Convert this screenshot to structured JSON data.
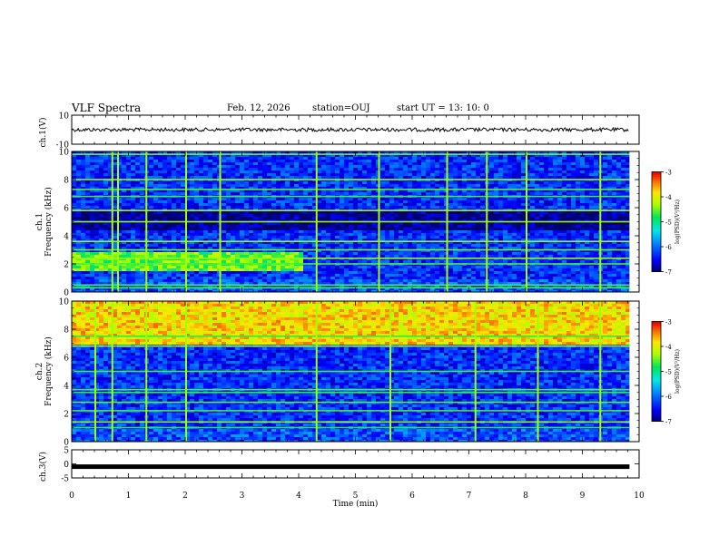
{
  "header": {
    "title": "VLF Spectra",
    "date": "Feb. 12, 2026",
    "station": "station=OUJ",
    "start_time": "start  UT  =   13: 10: 0"
  },
  "chart_data": [
    {
      "type": "line",
      "name": "ch.1 waveform",
      "ylabel": "ch.1(V)",
      "ylim": [
        -10,
        10
      ],
      "yticks": [
        "10",
        "-10"
      ],
      "level": 0,
      "description_values": {
        "mean": 0,
        "noise_amplitude": 1
      }
    },
    {
      "type": "heatmap",
      "name": "ch.1 spectrogram",
      "ylabel_top": "ch.1",
      "ylabel": "Frequency (kHz)",
      "ylim": [
        0,
        10
      ],
      "yticks": [
        "0",
        "2",
        "4",
        "6",
        "8",
        "10"
      ],
      "colorbar": {
        "label": "log(PSD)(V²/Hz)",
        "range": [
          -7,
          -3
        ],
        "ticks": [
          "-3",
          "-4",
          "-5",
          "-6",
          "-7"
        ]
      },
      "strong_bands_khz": [
        0.3,
        0.5,
        2.0,
        2.4,
        3.0,
        3.6,
        5.0,
        5.8,
        6.8,
        7.3,
        8.0,
        9.8
      ],
      "burst_times_min": [
        0.7,
        0.8,
        1.3,
        2.0,
        2.6,
        4.3,
        5.4,
        6.6,
        7.3,
        8.0,
        9.3
      ],
      "enhanced_region": {
        "time_min": [
          0,
          4
        ],
        "freq_khz": [
          1.5,
          3.0
        ],
        "level": -4.5
      }
    },
    {
      "type": "heatmap",
      "name": "ch.2 spectrogram",
      "ylabel_top": "ch.2",
      "ylabel": "Frequency (kHz)",
      "ylim": [
        0,
        10
      ],
      "yticks": [
        "0",
        "2",
        "4",
        "6",
        "8",
        "10"
      ],
      "colorbar": {
        "label": "log(PSD)(V²/Hz)",
        "range": [
          -7,
          -3
        ],
        "ticks": [
          "-3",
          "-4",
          "-5",
          "-6",
          "-7"
        ]
      },
      "strong_bands_khz": [
        1.0,
        1.4,
        2.2,
        2.8,
        3.5,
        3.7,
        5.0,
        6.8,
        7.5
      ],
      "burst_times_min": [
        0.4,
        0.7,
        1.3,
        2.0,
        4.3,
        5.6,
        7.1,
        8.2,
        9.3
      ],
      "enhanced_region": {
        "time_min": [
          0,
          10
        ],
        "freq_khz": [
          7.0,
          10.0
        ],
        "level": -3.8
      }
    },
    {
      "type": "line",
      "name": "ch.3 waveform",
      "ylabel": "ch.3(V)",
      "ylim": [
        -5,
        5
      ],
      "yticks": [
        "5",
        "0",
        "-5"
      ],
      "level": -1
    }
  ],
  "xaxis": {
    "label": "Time (min)",
    "xlim": [
      0,
      10
    ],
    "ticks": [
      "0",
      "1",
      "2",
      "3",
      "4",
      "5",
      "6",
      "7",
      "8",
      "9",
      "10"
    ],
    "data_end_min": 9.83
  }
}
